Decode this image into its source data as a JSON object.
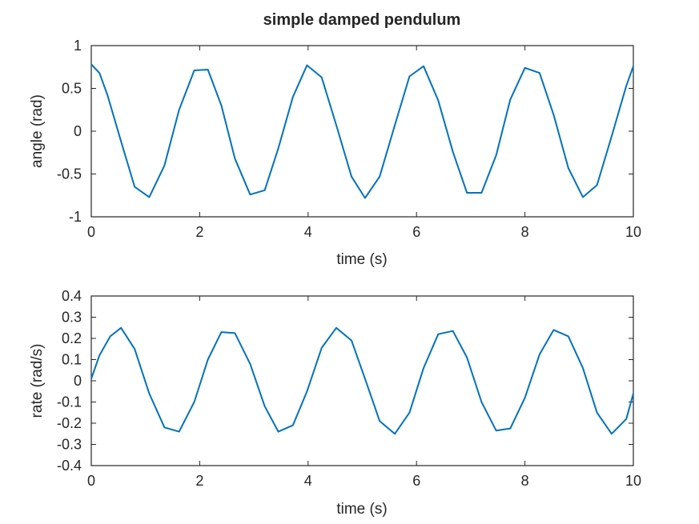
{
  "figure": {
    "title": "simple damped pendulum"
  },
  "colors": {
    "series": "#0072BD",
    "axes": "#262626",
    "background": "#ffffff"
  },
  "chart_data": [
    {
      "type": "line",
      "xlabel": "time (s)",
      "ylabel": "angle (rad)",
      "xlim": [
        0,
        10
      ],
      "ylim": [
        -1,
        1
      ],
      "xticks": [
        0,
        2,
        4,
        6,
        8,
        10
      ],
      "yticks": [
        -1,
        -0.5,
        0,
        0.5,
        1
      ],
      "xtick_labels": [
        "0",
        "2",
        "4",
        "6",
        "8",
        "10"
      ],
      "ytick_labels": [
        "-1",
        "-0.5",
        "0",
        "0.5",
        "1"
      ],
      "grid": false,
      "series": [
        {
          "x": [
            0,
            0.15,
            0.3,
            0.55,
            0.8,
            1.07,
            1.35,
            1.62,
            1.9,
            2.15,
            2.4,
            2.65,
            2.93,
            3.2,
            3.45,
            3.72,
            3.98,
            4.25,
            4.52,
            4.8,
            5.05,
            5.32,
            5.6,
            5.87,
            6.13,
            6.4,
            6.67,
            6.93,
            7.2,
            7.47,
            7.73,
            8.0,
            8.27,
            8.53,
            8.8,
            9.07,
            9.33,
            9.6,
            9.87,
            10
          ],
          "y": [
            0.78,
            0.68,
            0.42,
            -0.12,
            -0.65,
            -0.77,
            -0.4,
            0.25,
            0.71,
            0.72,
            0.3,
            -0.32,
            -0.74,
            -0.69,
            -0.2,
            0.4,
            0.77,
            0.63,
            0.07,
            -0.53,
            -0.78,
            -0.53,
            0.07,
            0.64,
            0.76,
            0.36,
            -0.24,
            -0.72,
            -0.72,
            -0.28,
            0.37,
            0.74,
            0.68,
            0.19,
            -0.43,
            -0.77,
            -0.63,
            -0.06,
            0.53,
            0.76
          ]
        }
      ]
    },
    {
      "type": "line",
      "xlabel": "time (s)",
      "ylabel": "rate (rad/s)",
      "xlim": [
        0,
        10
      ],
      "ylim": [
        -0.4,
        0.4
      ],
      "xticks": [
        0,
        2,
        4,
        6,
        8,
        10
      ],
      "yticks": [
        -0.4,
        -0.3,
        -0.2,
        -0.1,
        0,
        0.1,
        0.2,
        0.3,
        0.4
      ],
      "xtick_labels": [
        "0",
        "2",
        "4",
        "6",
        "8",
        "10"
      ],
      "ytick_labels": [
        "-0.4",
        "-0.3",
        "-0.2",
        "-0.1",
        "0",
        "0.1",
        "0.2",
        "0.3",
        "0.4"
      ],
      "grid": false,
      "series": [
        {
          "x": [
            0,
            0.15,
            0.35,
            0.55,
            0.8,
            1.07,
            1.35,
            1.62,
            1.9,
            2.15,
            2.4,
            2.65,
            2.93,
            3.2,
            3.45,
            3.72,
            3.98,
            4.25,
            4.52,
            4.8,
            5.05,
            5.32,
            5.6,
            5.87,
            6.13,
            6.4,
            6.67,
            6.93,
            7.2,
            7.47,
            7.73,
            8.0,
            8.27,
            8.53,
            8.8,
            9.07,
            9.33,
            9.6,
            9.87,
            10
          ],
          "y": [
            0.01,
            0.12,
            0.21,
            0.25,
            0.15,
            -0.06,
            -0.22,
            -0.24,
            -0.1,
            0.1,
            0.23,
            0.225,
            0.08,
            -0.12,
            -0.24,
            -0.21,
            -0.05,
            0.155,
            0.25,
            0.19,
            0.01,
            -0.19,
            -0.25,
            -0.15,
            0.06,
            0.22,
            0.235,
            0.11,
            -0.1,
            -0.235,
            -0.225,
            -0.08,
            0.125,
            0.24,
            0.21,
            0.06,
            -0.15,
            -0.25,
            -0.18,
            -0.06
          ]
        }
      ]
    }
  ]
}
